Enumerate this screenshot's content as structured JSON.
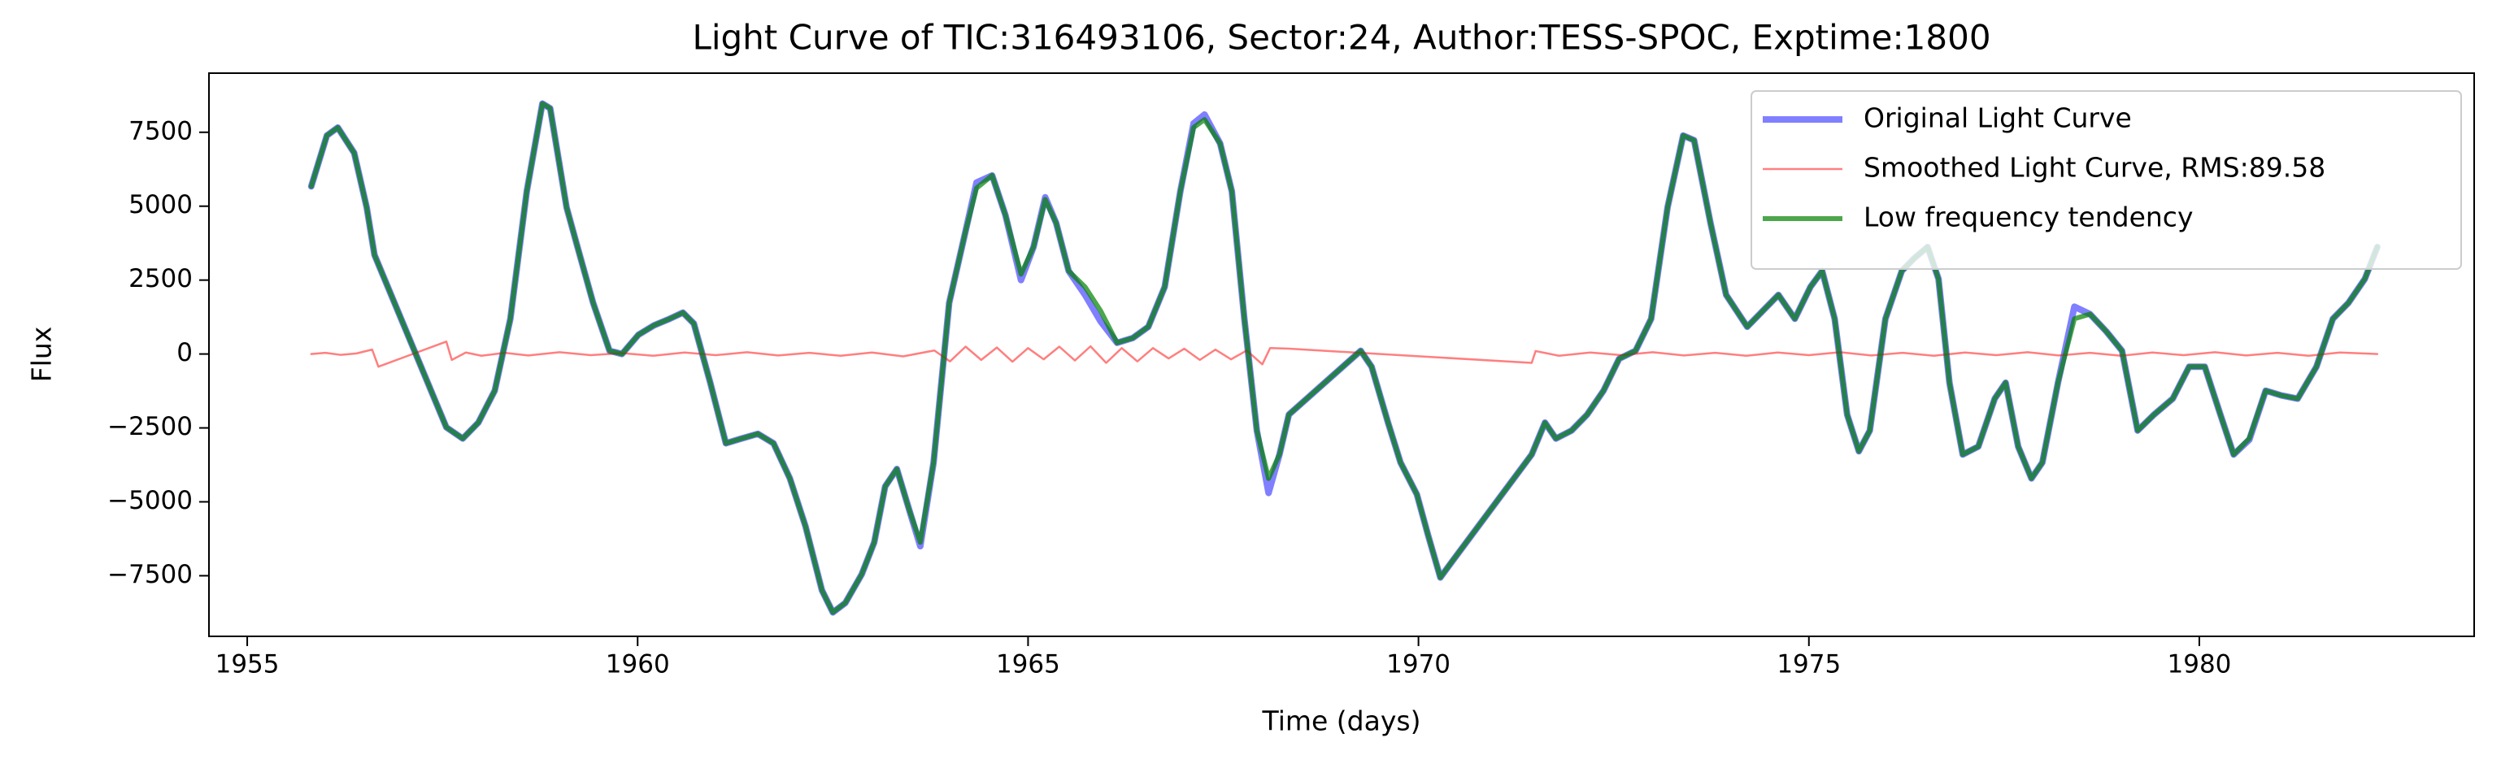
{
  "chart_data": {
    "type": "line",
    "title": "Light Curve of TIC:316493106, Sector:24, Author:TESS-SPOC, Exptime:1800",
    "x_label": "Time (days)",
    "y_label": "Flux",
    "xlim": [
      1954.51,
      1983.52
    ],
    "ylim": [
      -9550,
      9500
    ],
    "xticks": [
      1955,
      1960,
      1965,
      1970,
      1975,
      1980
    ],
    "yticks": [
      {
        "value": -7500,
        "label": "−7500"
      },
      {
        "value": -5000,
        "label": "−5000"
      },
      {
        "value": -2500,
        "label": "−2500"
      },
      0,
      2500,
      5000,
      7500
    ],
    "legend": "upper right",
    "grid": false,
    "series": [
      {
        "name": "Original Light Curve",
        "color": "#0000ff",
        "opacity": 0.5,
        "width": 8,
        "x": [
          1955.82,
          1956.02,
          1956.16,
          1956.37,
          1956.53,
          1956.63,
          1957.55,
          1957.76,
          1957.96,
          1958.17,
          1958.37,
          1958.58,
          1958.78,
          1958.88,
          1959.09,
          1959.23,
          1959.43,
          1959.64,
          1959.8,
          1960.01,
          1960.21,
          1960.41,
          1960.58,
          1960.72,
          1960.93,
          1961.13,
          1961.33,
          1961.54,
          1961.74,
          1961.95,
          1962.15,
          1962.36,
          1962.5,
          1962.66,
          1962.87,
          1963.03,
          1963.17,
          1963.32,
          1963.48,
          1963.62,
          1963.79,
          1963.99,
          1964.2,
          1964.34,
          1964.54,
          1964.71,
          1964.91,
          1965.07,
          1965.22,
          1965.36,
          1965.52,
          1965.73,
          1965.93,
          1966.14,
          1966.34,
          1966.54,
          1966.75,
          1966.95,
          1967.12,
          1967.26,
          1967.46,
          1967.61,
          1967.77,
          1967.93,
          1968.08,
          1968.22,
          1968.34,
          1969.26,
          1969.4,
          1969.61,
          1969.77,
          1969.98,
          1970.12,
          1970.28,
          1970.43,
          1971.45,
          1971.62,
          1971.76,
          1971.96,
          1972.16,
          1972.37,
          1972.57,
          1972.78,
          1972.98,
          1973.19,
          1973.39,
          1973.53,
          1973.74,
          1973.94,
          1974.21,
          1974.41,
          1974.61,
          1974.82,
          1975.02,
          1975.17,
          1975.33,
          1975.49,
          1975.64,
          1975.78,
          1975.98,
          1976.19,
          1976.35,
          1976.52,
          1976.66,
          1976.8,
          1976.97,
          1977.17,
          1977.38,
          1977.52,
          1977.68,
          1977.85,
          1977.99,
          1978.19,
          1978.4,
          1978.6,
          1978.81,
          1979.01,
          1979.21,
          1979.42,
          1979.66,
          1979.87,
          1980.07,
          1980.27,
          1980.44,
          1980.64,
          1980.85,
          1981.05,
          1981.26,
          1981.5,
          1981.71,
          1981.91,
          1982.12,
          1982.28
        ],
        "values": [
          5670,
          7390,
          7660,
          6800,
          4960,
          3350,
          -2480,
          -2860,
          -2320,
          -1240,
          1190,
          5500,
          8470,
          8310,
          4960,
          3620,
          1730,
          110,
          0,
          650,
          970,
          1190,
          1400,
          1030,
          -970,
          -3020,
          -2860,
          -2700,
          -3020,
          -4210,
          -5830,
          -7990,
          -8740,
          -8420,
          -7450,
          -6370,
          -4480,
          -3890,
          -5290,
          -6500,
          -3670,
          1730,
          4160,
          5800,
          6040,
          4700,
          2500,
          3620,
          5300,
          4430,
          2810,
          2000,
          1100,
          380,
          540,
          920,
          2270,
          5500,
          7800,
          8100,
          7120,
          5500,
          1190,
          -2590,
          -4700,
          -3400,
          -2050,
          110,
          -430,
          -2320,
          -3670,
          -4750,
          -6100,
          -7560,
          -7020,
          -3400,
          -2320,
          -2860,
          -2590,
          -2050,
          -1240,
          -160,
          110,
          1190,
          4960,
          7390,
          7230,
          4430,
          2000,
          920,
          1460,
          2000,
          1190,
          2270,
          2810,
          1190,
          -2050,
          -3290,
          -2590,
          1190,
          2810,
          3240,
          3620,
          2540,
          -970,
          -3400,
          -3130,
          -1510,
          -970,
          -3130,
          -4210,
          -3670,
          -970,
          1600,
          1350,
          760,
          110,
          -2590,
          -2050,
          -1510,
          -430,
          -430,
          -2050,
          -3400,
          -2900,
          -1240,
          -1400,
          -1510,
          -430,
          1190,
          1730,
          2540,
          3620
        ]
      },
      {
        "name": "Smoothed Light Curve, RMS:89.58",
        "color": "#ff0000",
        "opacity": 0.5,
        "width": 2.5,
        "x": [
          1955.82,
          1956.0,
          1956.2,
          1956.4,
          1956.6,
          1956.68,
          1957.55,
          1957.62,
          1957.8,
          1958.0,
          1958.3,
          1958.6,
          1959.0,
          1959.4,
          1959.8,
          1960.2,
          1960.6,
          1961.0,
          1961.4,
          1961.8,
          1962.2,
          1962.6,
          1963.0,
          1963.4,
          1963.8,
          1964.0,
          1964.2,
          1964.4,
          1964.6,
          1964.8,
          1965.0,
          1965.2,
          1965.4,
          1965.6,
          1965.8,
          1966.0,
          1966.2,
          1966.4,
          1966.6,
          1966.8,
          1967.0,
          1967.2,
          1967.4,
          1967.6,
          1967.8,
          1968.0,
          1968.1,
          1968.34,
          1971.45,
          1971.5,
          1971.8,
          1972.2,
          1972.6,
          1973.0,
          1973.4,
          1973.8,
          1974.2,
          1974.6,
          1975.0,
          1975.4,
          1975.8,
          1976.2,
          1976.6,
          1977.0,
          1977.4,
          1977.8,
          1978.2,
          1978.6,
          1979.0,
          1979.4,
          1979.8,
          1980.2,
          1980.6,
          1981.0,
          1981.4,
          1981.8,
          1982.28
        ],
        "values": [
          0,
          40,
          -30,
          20,
          150,
          -430,
          420,
          -200,
          50,
          -60,
          40,
          -50,
          60,
          -40,
          30,
          -60,
          50,
          -40,
          60,
          -50,
          40,
          -60,
          50,
          -80,
          120,
          -250,
          250,
          -200,
          220,
          -260,
          200,
          -180,
          250,
          -220,
          260,
          -300,
          200,
          -250,
          200,
          -150,
          180,
          -200,
          150,
          -180,
          120,
          -350,
          200,
          180,
          -300,
          100,
          -60,
          50,
          -40,
          60,
          -50,
          40,
          -60,
          50,
          -40,
          60,
          -50,
          40,
          -60,
          50,
          -40,
          60,
          -50,
          40,
          -60,
          50,
          -40,
          60,
          -50,
          40,
          -60,
          50,
          0
        ]
      },
      {
        "name": "Low frequency tendency",
        "color": "#008000",
        "opacity": 0.7,
        "width": 6,
        "x": [
          1955.82,
          1956.02,
          1956.16,
          1956.37,
          1956.53,
          1956.63,
          1957.55,
          1957.76,
          1957.96,
          1958.17,
          1958.37,
          1958.58,
          1958.78,
          1958.88,
          1959.09,
          1959.23,
          1959.43,
          1959.64,
          1959.8,
          1960.01,
          1960.21,
          1960.41,
          1960.58,
          1960.72,
          1960.93,
          1961.13,
          1961.33,
          1961.54,
          1961.74,
          1961.95,
          1962.15,
          1962.36,
          1962.5,
          1962.66,
          1962.87,
          1963.03,
          1963.17,
          1963.32,
          1963.48,
          1963.62,
          1963.79,
          1963.99,
          1964.2,
          1964.34,
          1964.54,
          1964.71,
          1964.91,
          1965.07,
          1965.22,
          1965.36,
          1965.52,
          1965.73,
          1965.93,
          1966.14,
          1966.34,
          1966.54,
          1966.75,
          1966.95,
          1967.12,
          1967.26,
          1967.46,
          1967.61,
          1967.77,
          1967.93,
          1968.08,
          1968.22,
          1968.34,
          1969.26,
          1969.4,
          1969.61,
          1969.77,
          1969.98,
          1970.12,
          1970.28,
          1970.43,
          1971.45,
          1971.62,
          1971.76,
          1971.96,
          1972.16,
          1972.37,
          1972.57,
          1972.78,
          1972.98,
          1973.19,
          1973.39,
          1973.53,
          1973.74,
          1973.94,
          1974.21,
          1974.41,
          1974.61,
          1974.82,
          1975.02,
          1975.17,
          1975.33,
          1975.49,
          1975.64,
          1975.78,
          1975.98,
          1976.19,
          1976.35,
          1976.52,
          1976.66,
          1976.8,
          1976.97,
          1977.17,
          1977.38,
          1977.52,
          1977.68,
          1977.85,
          1977.99,
          1978.19,
          1978.4,
          1978.6,
          1978.81,
          1979.01,
          1979.21,
          1979.42,
          1979.66,
          1979.87,
          1980.07,
          1980.27,
          1980.44,
          1980.64,
          1980.85,
          1981.05,
          1981.26,
          1981.5,
          1981.71,
          1981.91,
          1982.12,
          1982.28
        ],
        "values": [
          5670,
          7390,
          7660,
          6800,
          4960,
          3350,
          -2480,
          -2860,
          -2320,
          -1240,
          1190,
          5500,
          8470,
          8310,
          4960,
          3620,
          1730,
          110,
          0,
          650,
          970,
          1190,
          1400,
          1030,
          -970,
          -3020,
          -2860,
          -2700,
          -3020,
          -4210,
          -5830,
          -7990,
          -8740,
          -8420,
          -7450,
          -6370,
          -4480,
          -3890,
          -5290,
          -6370,
          -3670,
          1730,
          4160,
          5610,
          6040,
          4700,
          2700,
          3620,
          5230,
          4430,
          2810,
          2270,
          1460,
          380,
          540,
          920,
          2270,
          5500,
          7660,
          7930,
          7120,
          5500,
          1190,
          -2590,
          -4210,
          -3400,
          -2050,
          110,
          -430,
          -2320,
          -3670,
          -4750,
          -6100,
          -7560,
          -7020,
          -3400,
          -2320,
          -2860,
          -2590,
          -2050,
          -1240,
          -160,
          110,
          1190,
          4960,
          7390,
          7230,
          4430,
          2000,
          920,
          1460,
          2000,
          1190,
          2270,
          2810,
          1190,
          -2050,
          -3290,
          -2590,
          1190,
          2810,
          3240,
          3620,
          2540,
          -970,
          -3400,
          -3130,
          -1510,
          -970,
          -3130,
          -4210,
          -3670,
          -970,
          1190,
          1350,
          760,
          110,
          -2590,
          -2050,
          -1510,
          -430,
          -430,
          -2050,
          -3400,
          -2860,
          -1240,
          -1400,
          -1510,
          -430,
          1190,
          1730,
          2540,
          3620
        ]
      }
    ]
  }
}
